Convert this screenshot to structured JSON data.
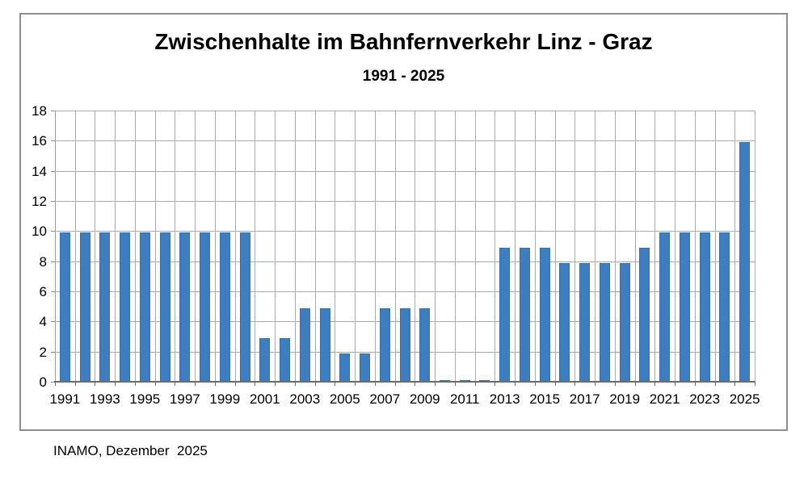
{
  "chart": {
    "title": "Zwischenhalte im Bahnfernverkehr Linz - Graz",
    "subtitle": "1991 - 2025",
    "footer": "INAMO, Dezember  2025"
  },
  "colors": {
    "bar_fill": "#3e7ec0",
    "bar_border": "#3671ab",
    "gridline": "#ababab",
    "x_axis_line": "#6b6b6b",
    "frame_border": "#8f8f8f",
    "text": "#000000",
    "background": "#ffffff"
  },
  "chart_data": {
    "type": "bar",
    "title": "Zwischenhalte im Bahnfernverkehr Linz - Graz",
    "subtitle": "1991 - 2025",
    "categories": [
      1991,
      1992,
      1993,
      1994,
      1995,
      1996,
      1997,
      1998,
      1999,
      2000,
      2001,
      2002,
      2003,
      2004,
      2005,
      2006,
      2007,
      2008,
      2009,
      2010,
      2011,
      2012,
      2013,
      2014,
      2015,
      2016,
      2017,
      2018,
      2019,
      2020,
      2021,
      2022,
      2023,
      2024,
      2025
    ],
    "values": [
      9.9,
      9.9,
      9.9,
      9.9,
      9.9,
      9.9,
      9.9,
      9.9,
      9.9,
      9.9,
      2.9,
      2.9,
      4.9,
      4.9,
      1.9,
      1.9,
      4.9,
      4.9,
      4.9,
      0.1,
      0.1,
      0.1,
      8.9,
      8.9,
      8.9,
      7.9,
      7.9,
      7.9,
      7.9,
      8.9,
      9.9,
      9.9,
      9.9,
      9.9,
      15.9
    ],
    "xlabel": "",
    "ylabel": "",
    "ylim": [
      0,
      18
    ],
    "y_tick_step": 2,
    "x_labeled_years": [
      1991,
      1993,
      1995,
      1997,
      1999,
      2001,
      2003,
      2005,
      2007,
      2009,
      2011,
      2013,
      2015,
      2017,
      2019,
      2021,
      2023,
      2025
    ],
    "grid": "both",
    "legend": "none",
    "source_note": "INAMO, Dezember  2025"
  }
}
